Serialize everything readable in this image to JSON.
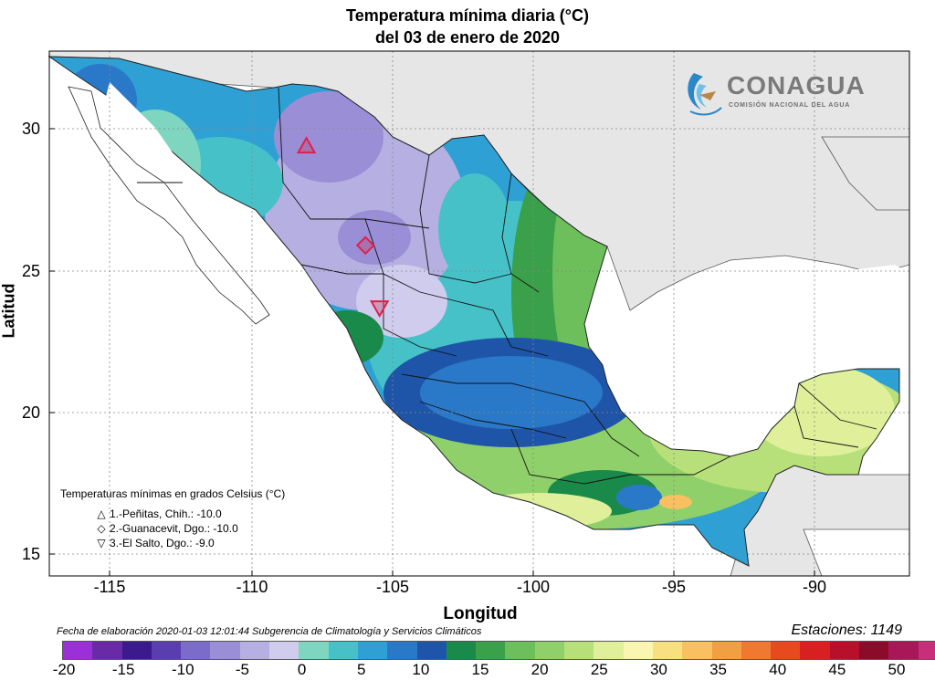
{
  "title_line1": "Temperatura mínima diaria (°C)",
  "title_line2": "del 03 de enero de 2020",
  "logo": {
    "name": "CONAGUA",
    "subtitle": "COMISIÓN NACIONAL DEL AGUA"
  },
  "axes": {
    "xlabel": "Longitud",
    "ylabel": "Latitud",
    "xticks": [
      "-115",
      "-110",
      "-105",
      "-100",
      "-95",
      "-90"
    ],
    "yticks": [
      "30",
      "25",
      "20",
      "15"
    ]
  },
  "legend": {
    "title": "Temperaturas mínimas en grados Celsius (°C)",
    "items": [
      {
        "symbol": "triangle-up-icon",
        "glyph": "△",
        "label": "1.-Peñitas, Chih.: -10.0"
      },
      {
        "symbol": "diamond-icon",
        "glyph": "◇",
        "label": "2.-Guanacevit, Dgo.: -10.0"
      },
      {
        "symbol": "triangle-down-icon",
        "glyph": "▽",
        "label": "3.-El Salto, Dgo.: -9.0"
      }
    ]
  },
  "footer": "Fecha de elaboración 2020-01-03 12:01:44 Subgerencia de Climatología y Servicios Climáticos",
  "stations": "Estaciones:  1149",
  "colorbar": {
    "labels": [
      "-20",
      "-15",
      "-10",
      "-5",
      "0",
      "5",
      "10",
      "15",
      "20",
      "25",
      "30",
      "35",
      "40",
      "45",
      "50"
    ],
    "colors": [
      "#9b30d9",
      "#6a2aa8",
      "#3a1a8c",
      "#5a3eb0",
      "#7a6cc8",
      "#9a8ed6",
      "#b6b0e2",
      "#d0ccee",
      "#7fd6c0",
      "#46c1c8",
      "#2fa0d4",
      "#2a78c8",
      "#1f55a8",
      "#1a8a4a",
      "#3aa04a",
      "#6cbf5a",
      "#8fd06a",
      "#b8e07a",
      "#e0f09a",
      "#f8f6b0",
      "#f8e080",
      "#f8c060",
      "#f0a040",
      "#f07830",
      "#e84a20",
      "#d82020",
      "#b8102a",
      "#8c0a2a",
      "#a81858",
      "#c82e7a",
      "#e048a8"
    ]
  },
  "markers": [
    {
      "name": "penitas-marker",
      "lon": -108.0,
      "lat": 29.4
    },
    {
      "name": "guanacevi-marker",
      "lon": -105.9,
      "lat": 25.9
    },
    {
      "name": "el-salto-marker",
      "lon": -105.4,
      "lat": 23.7
    }
  ]
}
